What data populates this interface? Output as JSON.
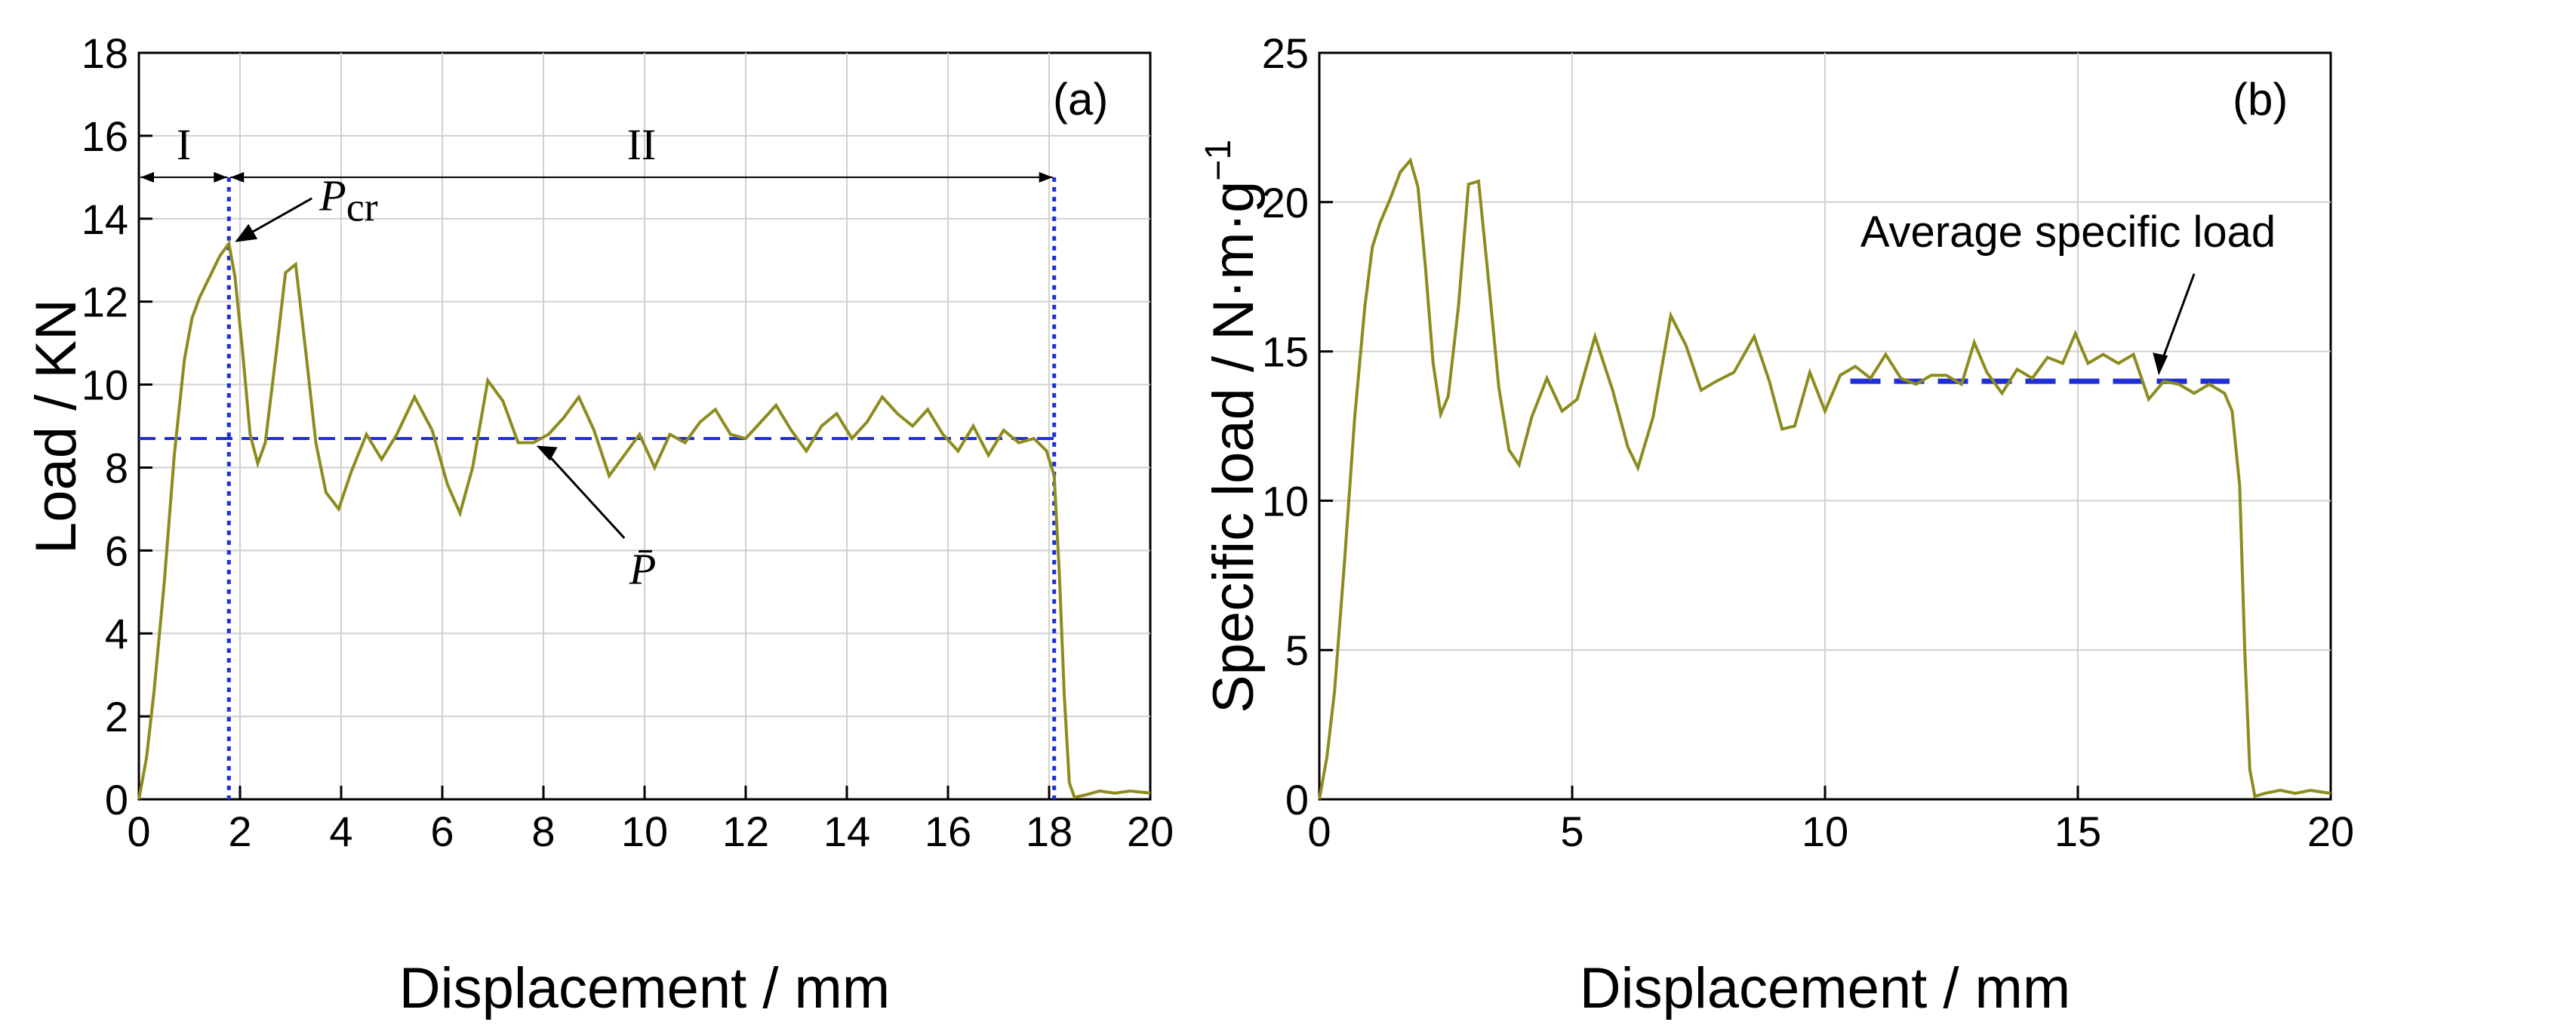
{
  "chart_data": [
    {
      "type": "line",
      "panel": "(a)",
      "xlabel": "Displacement / mm",
      "ylabel": "Load / KN",
      "xlim": [
        0,
        20
      ],
      "ylim": [
        0,
        18
      ],
      "xticks": [
        0,
        2,
        4,
        6,
        8,
        10,
        12,
        14,
        16,
        18,
        20
      ],
      "yticks": [
        0,
        2,
        4,
        6,
        8,
        10,
        12,
        14,
        16,
        18
      ],
      "grid": true,
      "series": [
        {
          "name": "Load",
          "color": "#8c8c1e",
          "x": [
            0,
            0.15,
            0.3,
            0.5,
            0.7,
            0.9,
            1.05,
            1.2,
            1.4,
            1.6,
            1.78,
            1.9,
            2.05,
            2.2,
            2.35,
            2.5,
            2.7,
            2.9,
            3.1,
            3.3,
            3.5,
            3.7,
            3.95,
            4.2,
            4.5,
            4.8,
            5.1,
            5.45,
            5.8,
            6.1,
            6.35,
            6.6,
            6.9,
            7.2,
            7.5,
            7.8,
            8.1,
            8.4,
            8.7,
            9.0,
            9.3,
            9.6,
            9.9,
            10.2,
            10.5,
            10.8,
            11.1,
            11.4,
            11.7,
            12.0,
            12.3,
            12.6,
            12.9,
            13.2,
            13.5,
            13.8,
            14.1,
            14.4,
            14.7,
            15.0,
            15.3,
            15.6,
            15.9,
            16.2,
            16.5,
            16.8,
            17.1,
            17.4,
            17.7,
            17.95,
            18.1,
            18.2,
            18.3,
            18.4,
            18.5,
            18.7,
            19.0,
            19.3,
            19.6,
            20.0
          ],
          "y": [
            0,
            1.0,
            2.6,
            5.2,
            8.3,
            10.6,
            11.6,
            12.1,
            12.6,
            13.1,
            13.4,
            12.6,
            10.8,
            8.8,
            8.1,
            8.6,
            10.6,
            12.7,
            12.9,
            10.8,
            8.6,
            7.4,
            7.0,
            7.9,
            8.8,
            8.2,
            8.8,
            9.7,
            8.9,
            7.6,
            6.9,
            8.0,
            10.1,
            9.6,
            8.6,
            8.6,
            8.8,
            9.2,
            9.7,
            8.9,
            7.8,
            8.3,
            8.8,
            8.0,
            8.8,
            8.6,
            9.1,
            9.4,
            8.8,
            8.7,
            9.1,
            9.5,
            8.9,
            8.4,
            9.0,
            9.3,
            8.7,
            9.1,
            9.7,
            9.3,
            9.0,
            9.4,
            8.8,
            8.4,
            9.0,
            8.3,
            8.9,
            8.6,
            8.7,
            8.4,
            7.8,
            5.5,
            2.5,
            0.4,
            0.05,
            0.1,
            0.2,
            0.15,
            0.2,
            0.15
          ]
        }
      ],
      "mean_line": {
        "value": 8.7,
        "color": "#1f2fd6",
        "label": "P̄"
      },
      "region_lines": {
        "x": [
          1.78,
          18.1
        ],
        "color": "#1f2fd6"
      },
      "regions": [
        {
          "label": "I",
          "from": 0,
          "to": 1.78,
          "y": 15
        },
        {
          "label": "II",
          "from": 1.78,
          "to": 18.1,
          "y": 15
        }
      ],
      "peak": {
        "x": 1.78,
        "y": 13.4,
        "label_main": "P",
        "label_sub": "cr"
      }
    },
    {
      "type": "line",
      "panel": "(b)",
      "xlabel": "Displacement / mm",
      "ylabel": "Specific load / N·m·g",
      "ylabel_sup": "−1",
      "xlim": [
        0,
        20
      ],
      "ylim": [
        0,
        25
      ],
      "xticks": [
        0,
        5,
        10,
        15,
        20
      ],
      "yticks": [
        0,
        5,
        10,
        15,
        20,
        25
      ],
      "grid": true,
      "series": [
        {
          "name": "Specific load",
          "color": "#8c8c1e",
          "x": [
            0,
            0.15,
            0.3,
            0.5,
            0.7,
            0.9,
            1.05,
            1.2,
            1.4,
            1.6,
            1.8,
            1.95,
            2.1,
            2.25,
            2.4,
            2.55,
            2.75,
            2.95,
            3.15,
            3.35,
            3.55,
            3.75,
            3.95,
            4.2,
            4.5,
            4.8,
            5.1,
            5.45,
            5.8,
            6.1,
            6.3,
            6.6,
            6.95,
            7.25,
            7.55,
            7.85,
            8.2,
            8.6,
            8.9,
            9.15,
            9.4,
            9.7,
            10.0,
            10.3,
            10.6,
            10.9,
            11.2,
            11.5,
            11.8,
            12.1,
            12.4,
            12.7,
            12.95,
            13.2,
            13.5,
            13.8,
            14.1,
            14.4,
            14.7,
            14.95,
            15.2,
            15.5,
            15.8,
            16.1,
            16.4,
            16.7,
            17.0,
            17.3,
            17.6,
            17.9,
            18.05,
            18.2,
            18.3,
            18.4,
            18.5,
            18.7,
            19.0,
            19.3,
            19.6,
            20.0
          ],
          "y": [
            0,
            1.4,
            3.6,
            8.0,
            12.8,
            16.5,
            18.5,
            19.3,
            20.1,
            21.0,
            21.4,
            20.5,
            17.8,
            14.6,
            12.9,
            13.5,
            16.5,
            20.6,
            20.7,
            17.3,
            13.8,
            11.7,
            11.2,
            12.8,
            14.1,
            13.0,
            13.4,
            15.5,
            13.7,
            11.8,
            11.1,
            12.8,
            16.2,
            15.2,
            13.7,
            14.0,
            14.3,
            15.5,
            14.0,
            12.4,
            12.5,
            14.3,
            13.0,
            14.2,
            14.5,
            14.1,
            14.9,
            14.1,
            13.9,
            14.2,
            14.2,
            13.9,
            15.3,
            14.3,
            13.6,
            14.4,
            14.1,
            14.8,
            14.6,
            15.6,
            14.6,
            14.9,
            14.6,
            14.9,
            13.4,
            14.0,
            13.9,
            13.6,
            13.9,
            13.6,
            13.0,
            10.5,
            5.0,
            1.0,
            0.1,
            0.2,
            0.3,
            0.2,
            0.3,
            0.2
          ]
        }
      ],
      "mean_line": {
        "value": 14.0,
        "from": 10.5,
        "to": 18.0,
        "color": "#1f2fd6",
        "label": "Average specific load"
      }
    }
  ]
}
